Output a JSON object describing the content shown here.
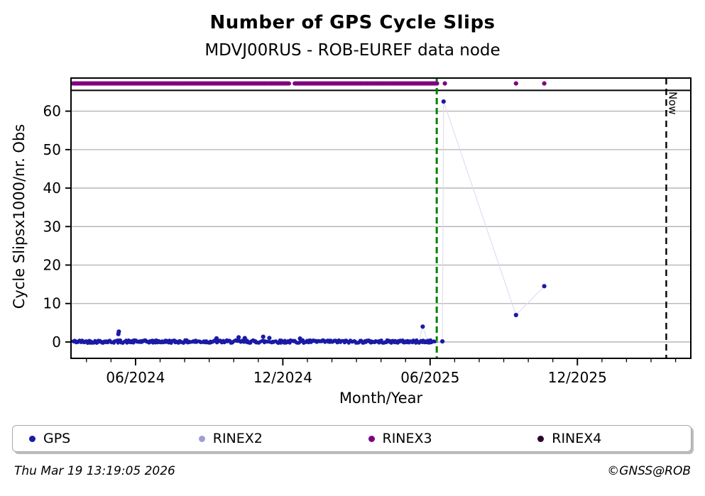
{
  "title": "Number of GPS Cycle Slips",
  "subtitle": "MDVJ00RUS - ROB-EUREF data node",
  "footer": {
    "timestamp": "Thu Mar 19 13:19:05 2026",
    "credit": "©GNSS@ROB"
  },
  "legend": {
    "items": [
      {
        "label": "GPS",
        "color": "#1a1aa6"
      },
      {
        "label": "RINEX2",
        "color": "#9e9ed4"
      },
      {
        "label": "RINEX3",
        "color": "#800080"
      },
      {
        "label": "RINEX4",
        "color": "#2d072d"
      }
    ]
  },
  "chart_data": {
    "type": "scatter",
    "title": "Number of GPS Cycle Slips",
    "subtitle": "MDVJ00RUS - ROB-EUREF data node",
    "xlabel": "Month/Year",
    "ylabel": "Cycle Slipsx1000/nr. Obs",
    "x_unit": "months since 2024-01-01",
    "xlim": [
      2.37,
      27.62
    ],
    "ylim": [
      -4.25,
      68.6
    ],
    "grid": "horizontal-only",
    "grid_color": "#b0b0b0",
    "y_ticks": [
      0,
      10,
      20,
      30,
      40,
      50,
      60
    ],
    "x_ticks_major": [
      {
        "t": 5,
        "label": "06/2024"
      },
      {
        "t": 11,
        "label": "12/2024"
      },
      {
        "t": 17,
        "label": "06/2025"
      },
      {
        "t": 23,
        "label": "12/2025"
      }
    ],
    "x_minor_from": 3,
    "x_minor_to": 27,
    "separator_line_y": 65.4,
    "series": [
      {
        "name": "GPS",
        "color": "#1a1aa6",
        "band": {
          "t_start": 2.45,
          "t_end": 17.2,
          "points_per_month": 30,
          "y_base": -0.3,
          "y_spread": 0.8,
          "seed": 42,
          "r": 2.5
        },
        "outliers": [
          [
            4.3,
            2.05
          ],
          [
            4.32,
            2.7
          ],
          [
            8.3,
            0.95
          ],
          [
            9.2,
            1.2
          ],
          [
            9.45,
            1.0
          ],
          [
            10.2,
            1.35
          ],
          [
            10.45,
            1.05
          ],
          [
            11.7,
            0.9
          ],
          [
            16.7,
            4.0
          ],
          [
            17.5,
            0.15
          ],
          [
            17.55,
            62.5
          ],
          [
            20.5,
            7.0
          ],
          [
            21.65,
            14.5
          ]
        ]
      },
      {
        "name": "RINEX2",
        "color": "#9e9ed4",
        "outliers": []
      },
      {
        "name": "RINEX3",
        "color": "#800080",
        "value": 67.2,
        "band": {
          "t_start": 2.45,
          "t_end": 17.3,
          "points_per_month": 30,
          "gap": [
            11.25,
            11.45
          ],
          "r": 3.0
        },
        "outliers": [
          [
            17.6,
            67.2
          ],
          [
            20.5,
            67.2
          ],
          [
            21.65,
            67.2
          ]
        ]
      },
      {
        "name": "RINEX4",
        "color": "#2d072d",
        "outliers": []
      }
    ],
    "connector_line": {
      "color": "#dcdcf0",
      "points": [
        [
          16.55,
          0.2
        ],
        [
          16.7,
          4.0
        ],
        [
          16.9,
          0.15
        ],
        [
          17.2,
          0.2
        ],
        [
          17.5,
          0.15
        ],
        [
          17.55,
          62.5
        ],
        [
          20.5,
          7.0
        ],
        [
          21.65,
          14.5
        ]
      ]
    },
    "vlines": [
      {
        "name": "last-data-line",
        "t": 17.27,
        "color": "#008000",
        "width": 3,
        "dash": "9 5",
        "label": ""
      },
      {
        "name": "now-line",
        "t": 26.62,
        "color": "#000000",
        "width": 2.4,
        "dash": "9 6",
        "label": "Now"
      }
    ]
  }
}
